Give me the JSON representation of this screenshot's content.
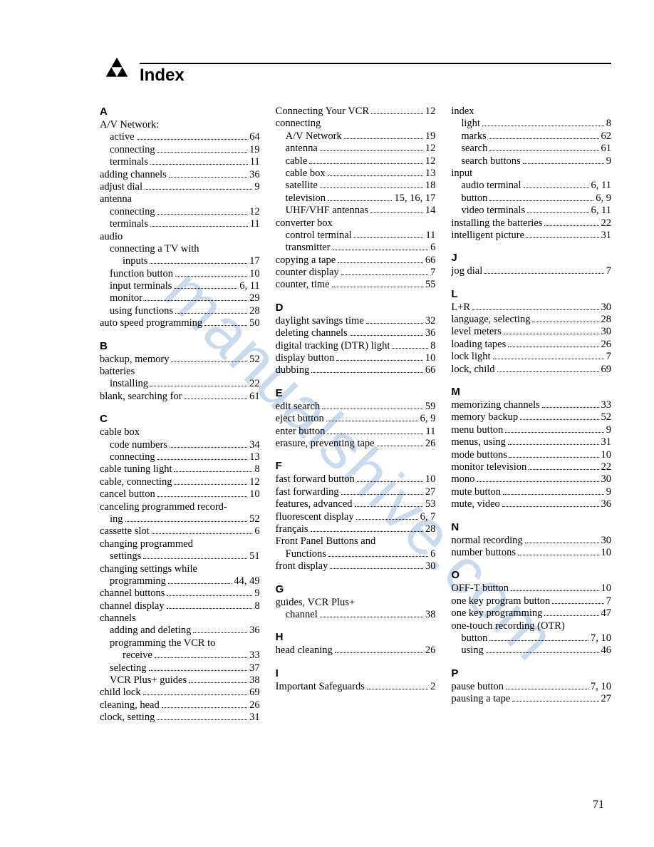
{
  "title": "Index",
  "page_number": "71",
  "watermark": "manualshive.com",
  "colors": {
    "text": "#000000",
    "background": "#ffffff",
    "watermark": "#9fbde0"
  },
  "typography": {
    "body_font": "Times New Roman",
    "body_size_pt": 11,
    "heading_font": "Arial",
    "title_size_pt": 18,
    "letter_size_pt": 11
  },
  "columns": [
    [
      {
        "type": "letter",
        "text": "A",
        "first": true
      },
      {
        "type": "heading",
        "text": "A/V Network:"
      },
      {
        "type": "entry",
        "text": "active",
        "page": "64",
        "indent": 1
      },
      {
        "type": "entry",
        "text": "connecting",
        "page": "19",
        "indent": 1
      },
      {
        "type": "entry",
        "text": "terminals",
        "page": "11",
        "indent": 1
      },
      {
        "type": "entry",
        "text": "adding channels",
        "page": "36"
      },
      {
        "type": "entry",
        "text": "adjust dial",
        "page": "9"
      },
      {
        "type": "heading",
        "text": "antenna"
      },
      {
        "type": "entry",
        "text": "connecting",
        "page": "12",
        "indent": 1
      },
      {
        "type": "entry",
        "text": "terminals",
        "page": "11",
        "indent": 1
      },
      {
        "type": "heading",
        "text": "audio"
      },
      {
        "type": "heading",
        "text": "connecting a TV with",
        "indent": 1
      },
      {
        "type": "entry",
        "text": "inputs",
        "page": "17",
        "indent": 2
      },
      {
        "type": "entry",
        "text": "function button",
        "page": "10",
        "indent": 1
      },
      {
        "type": "entry",
        "text": "input terminals",
        "page": "6, 11",
        "indent": 1
      },
      {
        "type": "entry",
        "text": "monitor",
        "page": "29",
        "indent": 1
      },
      {
        "type": "entry",
        "text": "using functions",
        "page": "28",
        "indent": 1
      },
      {
        "type": "entry",
        "text": "auto speed programming",
        "page": "50"
      },
      {
        "type": "letter",
        "text": "B"
      },
      {
        "type": "entry",
        "text": "backup, memory",
        "page": "52"
      },
      {
        "type": "heading",
        "text": "batteries"
      },
      {
        "type": "entry",
        "text": "installing",
        "page": "22",
        "indent": 1
      },
      {
        "type": "entry",
        "text": "blank, searching for",
        "page": "61"
      },
      {
        "type": "letter",
        "text": "C"
      },
      {
        "type": "heading",
        "text": "cable box"
      },
      {
        "type": "entry",
        "text": "code numbers",
        "page": "34",
        "indent": 1
      },
      {
        "type": "entry",
        "text": "connecting",
        "page": "13",
        "indent": 1
      },
      {
        "type": "entry",
        "text": "cable tuning light",
        "page": "8"
      },
      {
        "type": "entry",
        "text": "cable, connecting",
        "page": "12"
      },
      {
        "type": "entry",
        "text": "cancel button",
        "page": "10"
      },
      {
        "type": "heading",
        "text": "canceling programmed record-"
      },
      {
        "type": "entry",
        "text": "ing",
        "page": "52",
        "indent": 1
      },
      {
        "type": "entry",
        "text": "cassette slot",
        "page": "6"
      },
      {
        "type": "heading",
        "text": "changing programmed"
      },
      {
        "type": "entry",
        "text": "settings",
        "page": "51",
        "indent": 1
      },
      {
        "type": "heading",
        "text": "changing settings while"
      },
      {
        "type": "entry",
        "text": "programming",
        "page": "44, 49",
        "indent": 1
      },
      {
        "type": "entry",
        "text": "channel buttons",
        "page": "9"
      },
      {
        "type": "entry",
        "text": "channel display",
        "page": "8"
      },
      {
        "type": "heading",
        "text": "channels"
      },
      {
        "type": "entry",
        "text": "adding and deleting",
        "page": "36",
        "indent": 1
      },
      {
        "type": "heading",
        "text": "programming the VCR to",
        "indent": 1
      },
      {
        "type": "entry",
        "text": "receive",
        "page": "33",
        "indent": 2
      },
      {
        "type": "entry",
        "text": "selecting",
        "page": "37",
        "indent": 1
      },
      {
        "type": "entry",
        "text": "VCR Plus+ guides",
        "page": "38",
        "indent": 1
      },
      {
        "type": "entry",
        "text": "child lock",
        "page": "69"
      },
      {
        "type": "entry",
        "text": "cleaning, head",
        "page": "26"
      },
      {
        "type": "entry",
        "text": "clock, setting",
        "page": "31"
      }
    ],
    [
      {
        "type": "entry",
        "text": "Connecting Your VCR",
        "page": "12"
      },
      {
        "type": "heading",
        "text": "connecting"
      },
      {
        "type": "entry",
        "text": "A/V Network",
        "page": "19",
        "indent": 1
      },
      {
        "type": "entry",
        "text": "antenna",
        "page": "12",
        "indent": 1
      },
      {
        "type": "entry",
        "text": "cable",
        "page": "12",
        "indent": 1
      },
      {
        "type": "entry",
        "text": "cable box",
        "page": "13",
        "indent": 1
      },
      {
        "type": "entry",
        "text": "satellite",
        "page": "18",
        "indent": 1
      },
      {
        "type": "entry",
        "text": "television",
        "page": "15, 16, 17",
        "indent": 1
      },
      {
        "type": "entry",
        "text": "UHF/VHF antennas",
        "page": "14",
        "indent": 1
      },
      {
        "type": "heading",
        "text": "converter box"
      },
      {
        "type": "entry",
        "text": "control terminal",
        "page": "11",
        "indent": 1
      },
      {
        "type": "entry",
        "text": "transmitter",
        "page": "6",
        "indent": 1
      },
      {
        "type": "entry",
        "text": "copying a tape",
        "page": "66"
      },
      {
        "type": "entry",
        "text": "counter display",
        "page": "7"
      },
      {
        "type": "entry",
        "text": "counter, time",
        "page": "55"
      },
      {
        "type": "letter",
        "text": "D"
      },
      {
        "type": "entry",
        "text": "daylight savings time",
        "page": "32"
      },
      {
        "type": "entry",
        "text": "deleting channels",
        "page": "36"
      },
      {
        "type": "entry",
        "text": "digital tracking (DTR) light",
        "page": "8"
      },
      {
        "type": "entry",
        "text": "display button",
        "page": "10"
      },
      {
        "type": "entry",
        "text": "dubbing",
        "page": "66"
      },
      {
        "type": "letter",
        "text": "E"
      },
      {
        "type": "entry",
        "text": "edit search",
        "page": "59"
      },
      {
        "type": "entry",
        "text": "eject button",
        "page": "6, 9"
      },
      {
        "type": "entry",
        "text": "enter button",
        "page": "11"
      },
      {
        "type": "entry",
        "text": "erasure, preventing tape",
        "page": "26"
      },
      {
        "type": "letter",
        "text": "F"
      },
      {
        "type": "entry",
        "text": "fast forward button",
        "page": "10"
      },
      {
        "type": "entry",
        "text": "fast forwarding",
        "page": "27"
      },
      {
        "type": "entry",
        "text": "features, advanced",
        "page": "53"
      },
      {
        "type": "entry",
        "text": "fluorescent display",
        "page": "6, 7"
      },
      {
        "type": "entry",
        "text": "français",
        "page": "28"
      },
      {
        "type": "heading",
        "text": "Front Panel Buttons and"
      },
      {
        "type": "entry",
        "text": "Functions",
        "page": "6",
        "indent": 1
      },
      {
        "type": "entry",
        "text": "front display",
        "page": "30"
      },
      {
        "type": "letter",
        "text": "G"
      },
      {
        "type": "heading",
        "text": "guides, VCR Plus+"
      },
      {
        "type": "entry",
        "text": "channel",
        "page": "38",
        "indent": 1
      },
      {
        "type": "letter",
        "text": "H"
      },
      {
        "type": "entry",
        "text": "head cleaning",
        "page": "26"
      },
      {
        "type": "letter",
        "text": "I"
      },
      {
        "type": "entry",
        "text": "Important Safeguards",
        "page": "2"
      }
    ],
    [
      {
        "type": "heading",
        "text": "index"
      },
      {
        "type": "entry",
        "text": "light",
        "page": "8",
        "indent": 1
      },
      {
        "type": "entry",
        "text": "marks",
        "page": "62",
        "indent": 1
      },
      {
        "type": "entry",
        "text": "search",
        "page": "61",
        "indent": 1
      },
      {
        "type": "entry",
        "text": "search buttons",
        "page": "9",
        "indent": 1
      },
      {
        "type": "heading",
        "text": "input"
      },
      {
        "type": "entry",
        "text": "audio terminal",
        "page": "6, 11",
        "indent": 1
      },
      {
        "type": "entry",
        "text": "button",
        "page": "6, 9",
        "indent": 1
      },
      {
        "type": "entry",
        "text": "video terminals",
        "page": "6, 11",
        "indent": 1
      },
      {
        "type": "entry",
        "text": "installing the batteries",
        "page": "22"
      },
      {
        "type": "entry",
        "text": "intelligent picture",
        "page": "31"
      },
      {
        "type": "letter",
        "text": "J"
      },
      {
        "type": "entry",
        "text": "jog dial",
        "page": "7"
      },
      {
        "type": "letter",
        "text": "L"
      },
      {
        "type": "entry",
        "text": "L+R",
        "page": "30"
      },
      {
        "type": "entry",
        "text": "language, selecting",
        "page": "28"
      },
      {
        "type": "entry",
        "text": "level meters",
        "page": "30"
      },
      {
        "type": "entry",
        "text": "loading tapes",
        "page": "26"
      },
      {
        "type": "entry",
        "text": "lock light",
        "page": "7"
      },
      {
        "type": "entry",
        "text": "lock, child",
        "page": "69"
      },
      {
        "type": "letter",
        "text": "M"
      },
      {
        "type": "entry",
        "text": "memorizing channels",
        "page": "33"
      },
      {
        "type": "entry",
        "text": "memory backup",
        "page": "52"
      },
      {
        "type": "entry",
        "text": "menu button",
        "page": "9"
      },
      {
        "type": "entry",
        "text": "menus, using",
        "page": "31"
      },
      {
        "type": "entry",
        "text": "mode buttons",
        "page": "10"
      },
      {
        "type": "entry",
        "text": "monitor television",
        "page": "22"
      },
      {
        "type": "entry",
        "text": "mono",
        "page": "30"
      },
      {
        "type": "entry",
        "text": "mute button",
        "page": "9"
      },
      {
        "type": "entry",
        "text": "mute, video",
        "page": "36"
      },
      {
        "type": "letter",
        "text": "N"
      },
      {
        "type": "entry",
        "text": "normal recording",
        "page": "30"
      },
      {
        "type": "entry",
        "text": "number buttons",
        "page": "10"
      },
      {
        "type": "letter",
        "text": "O"
      },
      {
        "type": "entry",
        "text": "OFF-T button",
        "page": "10"
      },
      {
        "type": "entry",
        "text": "one key program button",
        "page": "7"
      },
      {
        "type": "entry",
        "text": "one key programming",
        "page": "47"
      },
      {
        "type": "heading",
        "text": "one-touch recording (OTR)"
      },
      {
        "type": "entry",
        "text": "button",
        "page": "7, 10",
        "indent": 1
      },
      {
        "type": "entry",
        "text": "using",
        "page": "46",
        "indent": 1
      },
      {
        "type": "letter",
        "text": "P"
      },
      {
        "type": "entry",
        "text": "pause button",
        "page": "7, 10"
      },
      {
        "type": "entry",
        "text": "pausing a tape",
        "page": "27"
      }
    ]
  ]
}
